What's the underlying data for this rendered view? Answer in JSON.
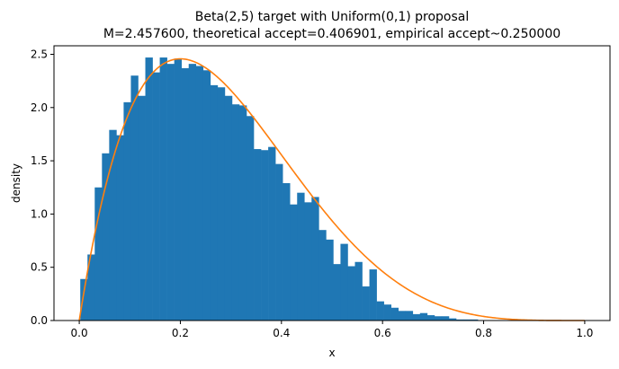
{
  "chart_data": {
    "type": "bar",
    "title_line1": "Beta(2,5) target with Uniform(0,1) proposal",
    "title_line2": "M=2.457600, theoretical accept=0.406901, empirical accept~0.250000",
    "xlabel": "x",
    "ylabel": "density",
    "xlim": [
      -0.05,
      1.05
    ],
    "ylim": [
      0,
      2.58
    ],
    "xticks": [
      "0.0",
      "0.2",
      "0.4",
      "0.6",
      "0.8",
      "1.0"
    ],
    "yticks": [
      "0.0",
      "0.5",
      "1.0",
      "1.5",
      "2.0",
      "2.5"
    ],
    "grid": false,
    "legend": "none",
    "series": [
      {
        "kind": "histogram",
        "color": "#1f77b4",
        "bin_start": 0.002,
        "bin_width": 0.0143,
        "values": [
          0.39,
          0.62,
          1.25,
          1.57,
          1.79,
          1.74,
          2.05,
          2.3,
          2.11,
          2.47,
          2.33,
          2.47,
          2.41,
          2.46,
          2.37,
          2.41,
          2.39,
          2.35,
          2.21,
          2.19,
          2.11,
          2.03,
          2.02,
          1.92,
          1.61,
          1.6,
          1.63,
          1.47,
          1.29,
          1.09,
          1.2,
          1.11,
          1.16,
          0.85,
          0.76,
          0.53,
          0.72,
          0.51,
          0.55,
          0.32,
          0.48,
          0.18,
          0.15,
          0.12,
          0.09,
          0.09,
          0.06,
          0.07,
          0.05,
          0.04,
          0.04,
          0.02,
          0.01,
          0.01,
          0.01,
          0.0,
          0.0
        ]
      },
      {
        "kind": "line",
        "color": "#ff7f0e",
        "function": "beta_pdf",
        "alpha": 2,
        "beta": 5,
        "x_range": [
          0.0,
          1.0
        ]
      }
    ]
  }
}
